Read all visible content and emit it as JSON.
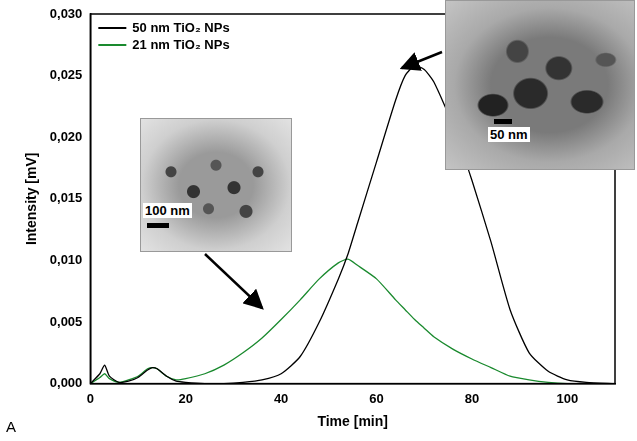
{
  "chart_data": {
    "type": "line",
    "x_label": "Time [min]",
    "y_label": "Intensity [mV]",
    "panel_label": "A",
    "annotations": [
      "100 nm",
      "50 nm"
    ],
    "x": [
      0,
      2,
      3,
      4,
      6,
      8,
      10,
      12,
      13,
      14,
      16,
      18,
      20,
      24,
      28,
      32,
      36,
      40,
      44,
      48,
      52,
      54,
      56,
      60,
      64,
      66,
      68,
      70,
      72,
      76,
      80,
      84,
      88,
      92,
      96,
      100,
      104,
      110
    ],
    "series": [
      {
        "name": "50 nm TiO₂ NPs",
        "color": "#000000",
        "values": [
          0,
          0.0008,
          0.0015,
          0.0006,
          0.0001,
          0.0002,
          0.0005,
          0.0011,
          0.0013,
          0.0012,
          0.0006,
          0.0002,
          0.0001,
          0,
          0,
          0.0001,
          0.0003,
          0.0008,
          0.0022,
          0.005,
          0.0085,
          0.0105,
          0.013,
          0.018,
          0.023,
          0.025,
          0.0258,
          0.0255,
          0.0245,
          0.021,
          0.0165,
          0.0115,
          0.006,
          0.0025,
          0.001,
          0.0003,
          0.0001,
          0
        ]
      },
      {
        "name": "21 nm TiO₂ NPs",
        "color": "#1a8a2e",
        "values": [
          0,
          0.0005,
          0.0008,
          0.0004,
          0.0001,
          0.0003,
          0.0006,
          0.0012,
          0.0013,
          0.0012,
          0.0006,
          0.0003,
          0.0004,
          0.0008,
          0.0015,
          0.0025,
          0.0037,
          0.0052,
          0.0068,
          0.0085,
          0.0098,
          0.0101,
          0.0096,
          0.0085,
          0.0068,
          0.006,
          0.0052,
          0.0045,
          0.0038,
          0.0028,
          0.002,
          0.0013,
          0.0006,
          0.0003,
          0.0001,
          0,
          0,
          0
        ]
      }
    ],
    "xlim": [
      0,
      110
    ],
    "xticks": [
      0,
      20,
      40,
      60,
      80,
      100
    ],
    "ylim": [
      0,
      0.03
    ],
    "yticks": [
      {
        "value": 0,
        "label": "0,000"
      },
      {
        "value": 0.005,
        "label": "0,005"
      },
      {
        "value": 0.01,
        "label": "0,010"
      },
      {
        "value": 0.015,
        "label": "0,015"
      },
      {
        "value": 0.02,
        "label": "0,020"
      },
      {
        "value": 0.025,
        "label": "0,025"
      },
      {
        "value": 0.03,
        "label": "0,030"
      }
    ],
    "grid": false,
    "legend": "upper left"
  }
}
